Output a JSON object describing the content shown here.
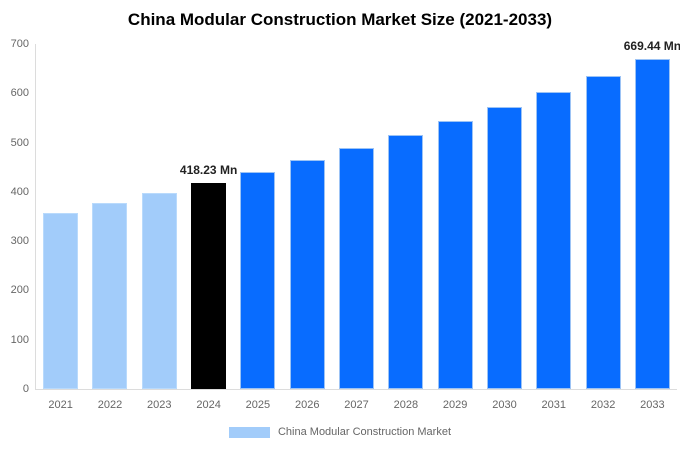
{
  "title": "China Modular Construction Market Size (2021-2033)",
  "colors": {
    "light_blue_bar": "#A2CCFA",
    "light_blue_bar_border": "#B9DAFC",
    "blue_bar": "#086CFF",
    "blue_bar_border": "#9CC3F5",
    "highlight_bar": "#000000",
    "axis_line": "#DCDCDC",
    "tick_text": "#666666",
    "annotation_text": "#222222",
    "title_text": "#000000"
  },
  "chart_data": {
    "type": "bar",
    "title": "China Modular Construction Market Size (2021-2033)",
    "categories": [
      "2021",
      "2022",
      "2023",
      "2024",
      "2025",
      "2026",
      "2027",
      "2028",
      "2029",
      "2030",
      "2031",
      "2032",
      "2033"
    ],
    "series": [
      {
        "name": "China Modular Construction Market",
        "values": [
          357.5,
          376.7,
          396.9,
          418.23,
          440.7,
          464.3,
          489.2,
          515.5,
          543.1,
          572.3,
          603.0,
          635.4,
          669.44
        ]
      }
    ],
    "value_unit": "Mn",
    "bar_fill_colors": [
      "#A2CCFA",
      "#A2CCFA",
      "#A2CCFA",
      "#000000",
      "#086CFF",
      "#086CFF",
      "#086CFF",
      "#086CFF",
      "#086CFF",
      "#086CFF",
      "#086CFF",
      "#086CFF",
      "#086CFF"
    ],
    "bar_border_colors": [
      "#B9DAFC",
      "#B9DAFC",
      "#B9DAFC",
      null,
      "#9CC3F5",
      "#9CC3F5",
      "#9CC3F5",
      "#9CC3F5",
      "#9CC3F5",
      "#9CC3F5",
      "#9CC3F5",
      "#9CC3F5",
      "#9CC3F5"
    ],
    "annotations": [
      {
        "category": "2024",
        "text": "418.23 Mn"
      },
      {
        "category": "2033",
        "text": "669.44 Mn"
      }
    ],
    "xlabel": "",
    "ylabel": "",
    "ylim": [
      0,
      700
    ],
    "yticks": [
      0,
      100,
      200,
      300,
      400,
      500,
      600,
      700
    ],
    "grid": false,
    "legend": {
      "position": "bottom",
      "label": "China Modular Construction Market",
      "swatch_color": "#A2CCFA"
    }
  }
}
